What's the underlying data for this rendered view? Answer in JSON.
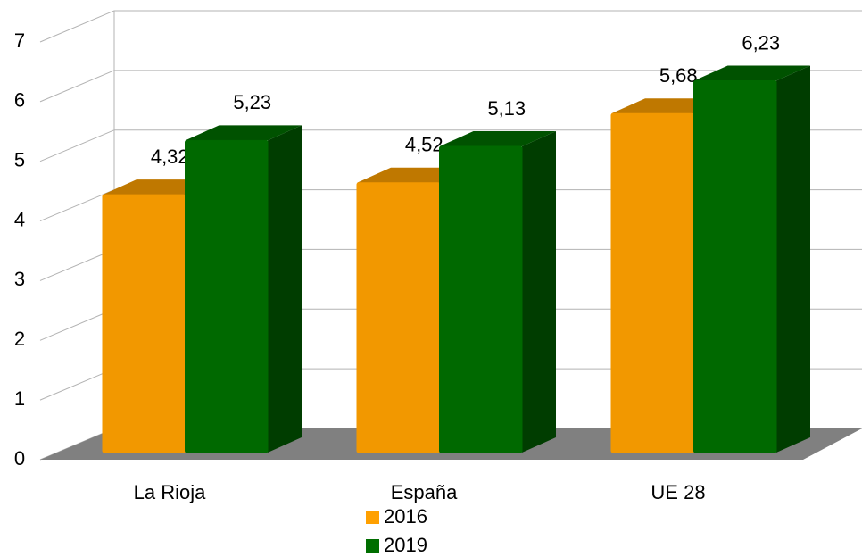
{
  "chart_data": {
    "type": "bar3d",
    "categories": [
      "La Rioja",
      "España",
      "UE 28"
    ],
    "series": [
      {
        "name": "2016",
        "color": "#ffa000",
        "values": [
          4.32,
          4.52,
          5.68
        ],
        "value_labels": [
          "4,32",
          "4,52",
          "5,68"
        ]
      },
      {
        "name": "2019",
        "color": "#006e00",
        "values": [
          5.23,
          5.13,
          6.23
        ],
        "value_labels": [
          "5,23",
          "5,13",
          "6,23"
        ]
      }
    ],
    "ylim": [
      0,
      7
    ],
    "yticks": [
      0,
      1,
      2,
      3,
      4,
      5,
      6,
      7
    ],
    "grid": true,
    "legend": "bottom"
  }
}
